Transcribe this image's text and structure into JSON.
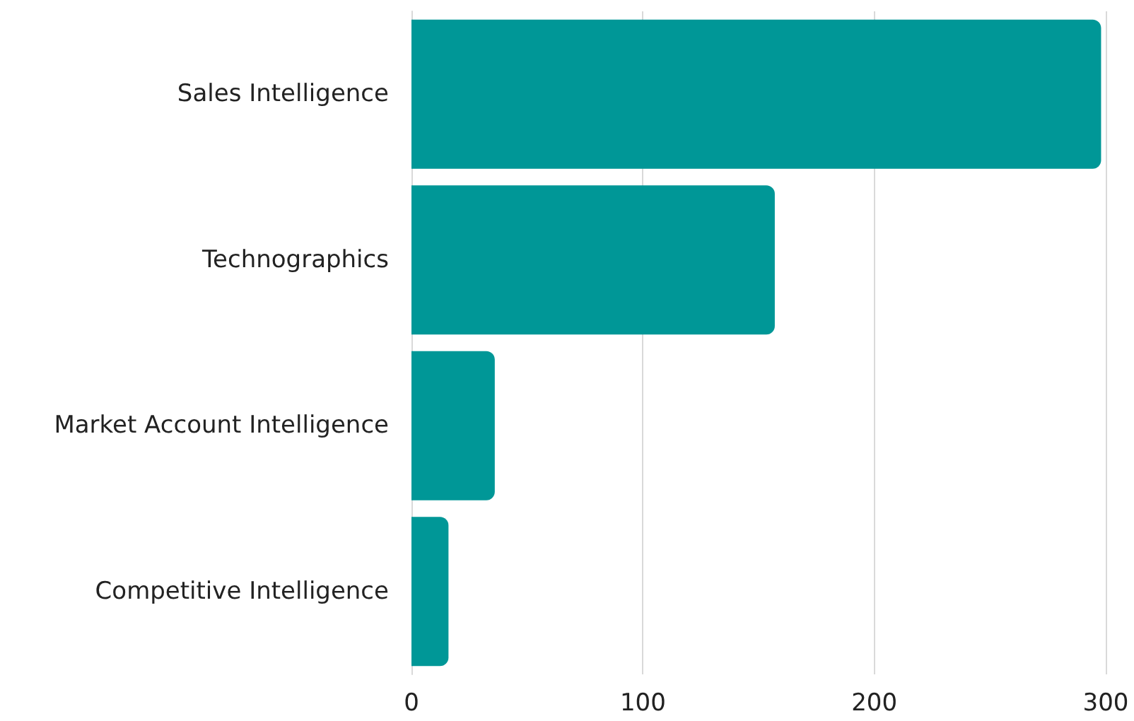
{
  "chart_data": {
    "type": "bar",
    "orientation": "horizontal",
    "categories": [
      "Sales Intelligence",
      "Technographics",
      "Market Account Intelligence",
      "Competitive Intelligence"
    ],
    "values": [
      298,
      157,
      36,
      16
    ],
    "color": "#009797",
    "xlim": [
      0,
      300
    ],
    "xticks": [
      0,
      100,
      200,
      300
    ],
    "grid": "x"
  }
}
